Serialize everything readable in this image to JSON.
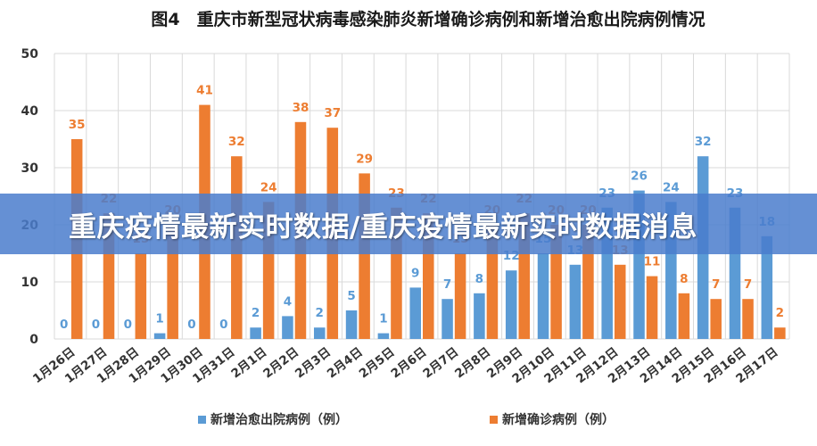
{
  "banner": {
    "text": "重庆疫情最新实时数据/重庆疫情最新实时数据消息"
  },
  "colors": {
    "series1": "#5b9bd5",
    "series2": "#ed7d31",
    "grid": "#d9d9d9",
    "banner": "#4a7ccc"
  },
  "chart_data": {
    "type": "bar",
    "title": "图4　重庆市新型冠状病毒感染肺炎新增确诊病例和新增治愈出院病例情况",
    "categories": [
      "1月26日",
      "1月27日",
      "1月28日",
      "1月29日",
      "1月30日",
      "1月31日",
      "2月1日",
      "2月2日",
      "2月3日",
      "2月4日",
      "2月5日",
      "2月6日",
      "2月7日",
      "2月8日",
      "2月9日",
      "2月10日",
      "2月11日",
      "2月12日",
      "2月13日",
      "2月14日",
      "2月15日",
      "2月16日",
      "2月17日"
    ],
    "series": [
      {
        "name": "新增治愈出院病例（例）",
        "values": [
          0,
          0,
          0,
          1,
          0,
          0,
          2,
          4,
          2,
          5,
          1,
          9,
          7,
          8,
          12,
          15,
          13,
          23,
          26,
          24,
          32,
          23,
          18
        ]
      },
      {
        "name": "新增确诊病例（例）",
        "values": [
          35,
          22,
          15,
          20,
          41,
          32,
          24,
          38,
          37,
          29,
          23,
          22,
          15,
          20,
          22,
          20,
          20,
          13,
          11,
          8,
          7,
          7,
          2
        ]
      }
    ],
    "xlabel": "",
    "ylabel": "",
    "ylim": [
      0,
      50
    ],
    "yticks": [
      0,
      10,
      20,
      30,
      40,
      50
    ],
    "grid": true,
    "legend": "bottom"
  }
}
